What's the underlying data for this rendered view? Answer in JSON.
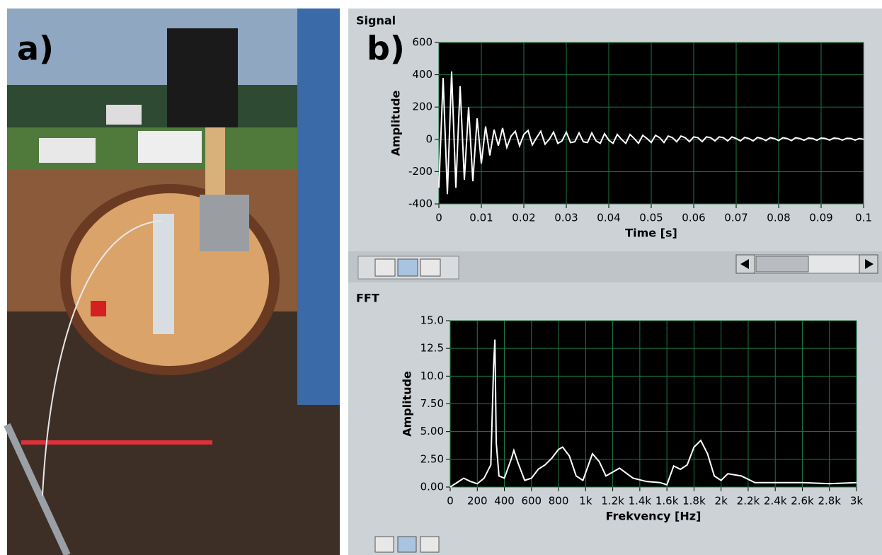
{
  "panel_labels": [
    "a)",
    "b)"
  ],
  "chart_data": [
    {
      "type": "line",
      "title": "Signal",
      "xlabel": "Time [s]",
      "ylabel": "Amplitude",
      "color": "#ffffff",
      "grid": true,
      "x": [
        0,
        0.001,
        0.002,
        0.003,
        0.004,
        0.005,
        0.006,
        0.007,
        0.008,
        0.009,
        0.01,
        0.011,
        0.012,
        0.013,
        0.014,
        0.015,
        0.016,
        0.017,
        0.018,
        0.019,
        0.02,
        0.021,
        0.022,
        0.023,
        0.024,
        0.025,
        0.026,
        0.027,
        0.028,
        0.029,
        0.03,
        0.031,
        0.032,
        0.033,
        0.034,
        0.035,
        0.036,
        0.037,
        0.038,
        0.039,
        0.04,
        0.041,
        0.042,
        0.043,
        0.044,
        0.045,
        0.046,
        0.047,
        0.048,
        0.049,
        0.05,
        0.051,
        0.052,
        0.053,
        0.054,
        0.055,
        0.056,
        0.057,
        0.058,
        0.059,
        0.06,
        0.061,
        0.062,
        0.063,
        0.064,
        0.065,
        0.066,
        0.067,
        0.068,
        0.069,
        0.07,
        0.071,
        0.072,
        0.073,
        0.074,
        0.075,
        0.076,
        0.077,
        0.078,
        0.079,
        0.08,
        0.081,
        0.082,
        0.083,
        0.084,
        0.085,
        0.086,
        0.087,
        0.088,
        0.089,
        0.09,
        0.091,
        0.092,
        0.093,
        0.094,
        0.095,
        0.096,
        0.097,
        0.098,
        0.099,
        0.1
      ],
      "values": [
        -300,
        380,
        -340,
        420,
        -300,
        330,
        -250,
        200,
        -260,
        130,
        -150,
        80,
        -100,
        60,
        -40,
        70,
        -50,
        20,
        50,
        -40,
        30,
        55,
        -35,
        10,
        50,
        -30,
        0,
        45,
        -25,
        -10,
        45,
        -20,
        -15,
        40,
        -15,
        -20,
        40,
        -10,
        -25,
        35,
        -5,
        -25,
        30,
        0,
        -25,
        30,
        5,
        -25,
        25,
        5,
        -20,
        25,
        10,
        -20,
        20,
        10,
        -15,
        20,
        10,
        -15,
        15,
        10,
        -15,
        15,
        10,
        -10,
        15,
        10,
        -10,
        15,
        5,
        -10,
        12,
        5,
        -10,
        12,
        5,
        -8,
        10,
        5,
        -8,
        10,
        5,
        -8,
        10,
        5,
        -6,
        8,
        5,
        -6,
        8,
        5,
        -5,
        8,
        5,
        -5,
        6,
        5,
        -5,
        5,
        0
      ],
      "xlim": [
        0,
        0.1
      ],
      "ylim": [
        -400,
        600
      ],
      "xticks": [
        0,
        0.01,
        0.02,
        0.03,
        0.04,
        0.05,
        0.06,
        0.07,
        0.08,
        0.09,
        0.1
      ],
      "yticks": [
        -400,
        -200,
        0,
        200,
        400,
        600
      ]
    },
    {
      "type": "line",
      "title": "FFT",
      "xlabel": "Frekvency [Hz]",
      "ylabel": "Amplitude",
      "color": "#ffffff",
      "grid": true,
      "x": [
        0,
        50,
        100,
        150,
        200,
        250,
        300,
        320,
        330,
        340,
        360,
        400,
        450,
        470,
        500,
        550,
        600,
        650,
        700,
        750,
        800,
        830,
        880,
        930,
        980,
        1050,
        1100,
        1150,
        1250,
        1350,
        1450,
        1550,
        1600,
        1650,
        1700,
        1750,
        1800,
        1850,
        1900,
        1950,
        2000,
        2050,
        2150,
        2250,
        2400,
        2600,
        2800,
        3000
      ],
      "values": [
        0,
        0.4,
        0.8,
        0.5,
        0.3,
        0.8,
        2.0,
        10.8,
        13.3,
        4,
        1.0,
        0.8,
        2.5,
        3.3,
        2.2,
        0.6,
        0.8,
        1.6,
        2.0,
        2.6,
        3.4,
        3.6,
        2.8,
        1.0,
        0.6,
        3.0,
        2.3,
        1.0,
        1.7,
        0.8,
        0.5,
        0.4,
        0.2,
        1.9,
        1.6,
        2.0,
        3.6,
        4.2,
        3.0,
        1.0,
        0.6,
        1.2,
        1.0,
        0.4,
        0.4,
        0.4,
        0.3,
        0.4
      ],
      "xlim": [
        0,
        3000
      ],
      "ylim": [
        0,
        15
      ],
      "xticks": [
        0,
        200,
        400,
        600,
        800,
        {
          "value": 1000,
          "label": "1k"
        },
        {
          "value": 1200,
          "label": "1.2k"
        },
        {
          "value": 1400,
          "label": "1.4k"
        },
        {
          "value": 1600,
          "label": "1.6k"
        },
        {
          "value": 1800,
          "label": "1.8k"
        },
        {
          "value": 2000,
          "label": "2k"
        },
        {
          "value": 2200,
          "label": "2.2k"
        },
        {
          "value": 2400,
          "label": "2.4k"
        },
        {
          "value": 2600,
          "label": "2.6k"
        },
        {
          "value": 2800,
          "label": "2.8k"
        },
        {
          "value": 3000,
          "label": "3k"
        }
      ],
      "yticks": [
        {
          "value": 0,
          "label": "0.00"
        },
        {
          "value": 2.5,
          "label": "2.50"
        },
        {
          "value": 5,
          "label": "5.00"
        },
        {
          "value": 7.5,
          "label": "7.50"
        },
        {
          "value": 10,
          "label": "10.0"
        },
        {
          "value": 12.5,
          "label": "12.5"
        },
        {
          "value": 15,
          "label": "15.0"
        }
      ]
    }
  ]
}
